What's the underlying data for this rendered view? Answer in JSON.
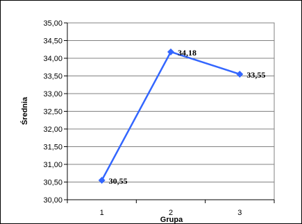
{
  "chart_data": {
    "type": "line",
    "title": "",
    "xlabel": "Grupa",
    "ylabel": "Średnia",
    "categories": [
      "1",
      "2",
      "3"
    ],
    "series": [
      {
        "values": [
          30.55,
          34.18,
          33.55
        ],
        "data_labels": [
          "30,55",
          "34,18",
          "33,55"
        ],
        "color": "#3366ff"
      }
    ],
    "ylim": [
      30.0,
      35.0
    ],
    "y_ticks": [
      "30,00",
      "30,50",
      "31,00",
      "31,50",
      "32,00",
      "32,50",
      "33,00",
      "33,50",
      "34,00",
      "34,50",
      "35,00"
    ],
    "grid": true,
    "legend": "none",
    "colors": {
      "line": "#3366ff",
      "grid": "#808080",
      "axis": "#000000"
    }
  }
}
